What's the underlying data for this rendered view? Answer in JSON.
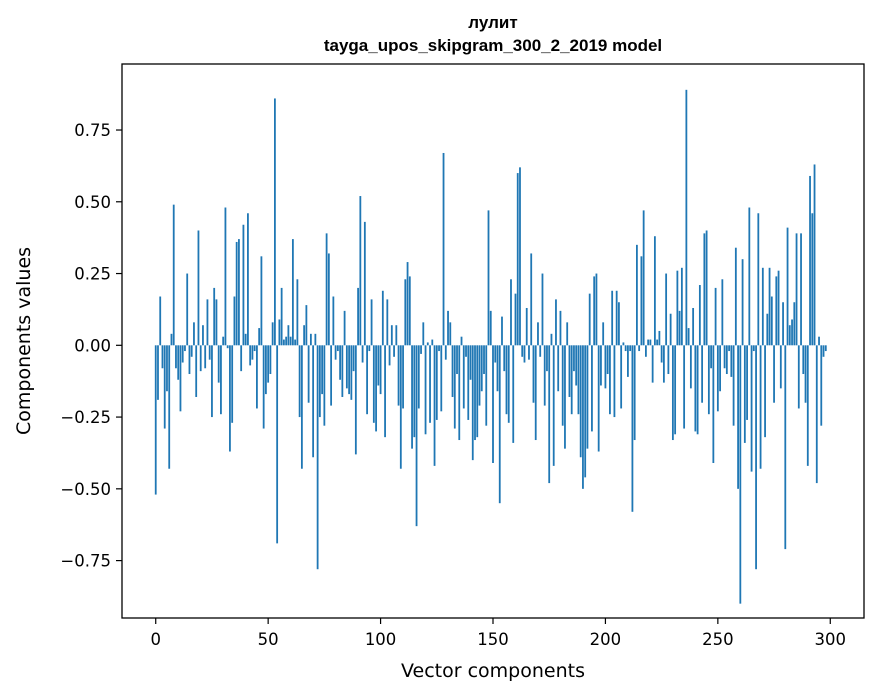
{
  "chart_data": {
    "type": "bar",
    "title": "лулит",
    "subtitle": "tayga_upos_skipgram_300_2_2019 model",
    "xlabel": "Vector components",
    "ylabel": "Components values",
    "xlim": [
      -15,
      315
    ],
    "ylim": [
      -0.95,
      0.98
    ],
    "xticks": [
      0,
      50,
      100,
      150,
      200,
      250,
      300
    ],
    "yticks": [
      -0.75,
      -0.5,
      -0.25,
      0.0,
      0.25,
      0.5,
      0.75
    ],
    "xtick_labels": [
      "0",
      "50",
      "100",
      "150",
      "200",
      "250",
      "300"
    ],
    "ytick_labels": [
      "−0.75",
      "−0.50",
      "−0.25",
      "0.00",
      "0.25",
      "0.50",
      "0.75"
    ],
    "bar_color": "#1f77b4",
    "grid": false,
    "values": [
      -0.52,
      -0.19,
      0.17,
      -0.08,
      -0.29,
      -0.16,
      -0.43,
      0.04,
      0.49,
      -0.08,
      -0.12,
      -0.23,
      -0.06,
      -0.02,
      0.25,
      -0.1,
      -0.04,
      0.08,
      -0.18,
      0.4,
      -0.09,
      0.07,
      -0.08,
      0.16,
      -0.05,
      -0.25,
      0.2,
      0.16,
      -0.13,
      -0.24,
      0.03,
      0.48,
      -0.01,
      -0.37,
      -0.27,
      0.17,
      0.36,
      0.37,
      -0.09,
      0.42,
      0.04,
      0.46,
      -0.07,
      -0.05,
      -0.02,
      -0.22,
      0.06,
      0.31,
      -0.29,
      -0.17,
      -0.13,
      -0.1,
      0.08,
      0.86,
      -0.69,
      0.09,
      0.2,
      0.02,
      0.03,
      0.07,
      0.03,
      0.37,
      0.02,
      0.23,
      -0.25,
      -0.43,
      0.07,
      0.14,
      -0.2,
      0.04,
      -0.39,
      0.04,
      -0.78,
      -0.25,
      -0.17,
      -0.28,
      0.39,
      0.32,
      -0.21,
      0.17,
      -0.05,
      -0.02,
      -0.12,
      -0.18,
      0.12,
      -0.15,
      -0.17,
      -0.19,
      -0.09,
      -0.38,
      0.2,
      0.52,
      -0.06,
      0.43,
      -0.24,
      -0.02,
      0.16,
      -0.27,
      -0.3,
      -0.14,
      -0.17,
      0.19,
      -0.32,
      0.16,
      -0.07,
      0.07,
      -0.04,
      0.07,
      -0.21,
      -0.43,
      -0.22,
      0.23,
      0.29,
      0.24,
      -0.36,
      -0.32,
      -0.63,
      -0.22,
      -0.03,
      0.08,
      -0.31,
      0.01,
      -0.27,
      0.02,
      -0.42,
      -0.26,
      -0.02,
      -0.23,
      0.67,
      -0.05,
      0.12,
      0.08,
      -0.18,
      -0.29,
      -0.1,
      -0.33,
      0.03,
      -0.22,
      -0.04,
      -0.26,
      -0.12,
      -0.4,
      -0.33,
      -0.32,
      -0.21,
      -0.16,
      -0.1,
      -0.28,
      0.47,
      0.12,
      -0.41,
      -0.06,
      -0.16,
      -0.55,
      0.1,
      -0.09,
      -0.24,
      -0.27,
      0.23,
      -0.34,
      0.18,
      0.6,
      0.62,
      -0.04,
      -0.06,
      0.13,
      -0.05,
      0.32,
      -0.2,
      -0.33,
      0.08,
      -0.04,
      0.25,
      -0.21,
      -0.09,
      -0.48,
      0.04,
      -0.42,
      0.16,
      -0.16,
      0.12,
      -0.28,
      -0.36,
      0.08,
      -0.18,
      -0.24,
      -0.09,
      -0.14,
      -0.24,
      -0.39,
      -0.5,
      -0.46,
      -0.36,
      0.18,
      -0.3,
      0.24,
      0.25,
      -0.37,
      -0.14,
      0.08,
      -0.15,
      -0.1,
      -0.24,
      0.19,
      -0.25,
      0.19,
      0.15,
      -0.22,
      0.01,
      -0.02,
      -0.11,
      -0.02,
      -0.58,
      -0.33,
      0.35,
      -0.02,
      0.31,
      0.47,
      -0.04,
      0.02,
      0.02,
      -0.13,
      0.38,
      0.02,
      0.05,
      -0.06,
      -0.13,
      0.25,
      -0.1,
      0.11,
      -0.33,
      -0.31,
      0.26,
      0.12,
      0.27,
      -0.29,
      0.89,
      0.06,
      -0.15,
      0.13,
      -0.3,
      -0.31,
      0.21,
      -0.2,
      0.39,
      0.4,
      -0.24,
      -0.08,
      -0.41,
      0.2,
      -0.23,
      -0.16,
      0.23,
      -0.08,
      -0.1,
      -0.02,
      -0.11,
      -0.28,
      0.34,
      -0.5,
      -0.9,
      0.3,
      -0.34,
      -0.26,
      0.48,
      -0.44,
      -0.02,
      -0.78,
      0.46,
      -0.43,
      0.27,
      -0.32,
      0.11,
      0.27,
      0.17,
      -0.2,
      0.24,
      0.26,
      -0.15,
      0.15,
      -0.71,
      0.41,
      0.07,
      0.09,
      0.15,
      0.39,
      -0.22,
      0.39,
      -0.1,
      -0.2,
      -0.42,
      0.59,
      0.46,
      0.63,
      -0.48,
      0.03,
      -0.28,
      -0.04,
      -0.02
    ]
  }
}
